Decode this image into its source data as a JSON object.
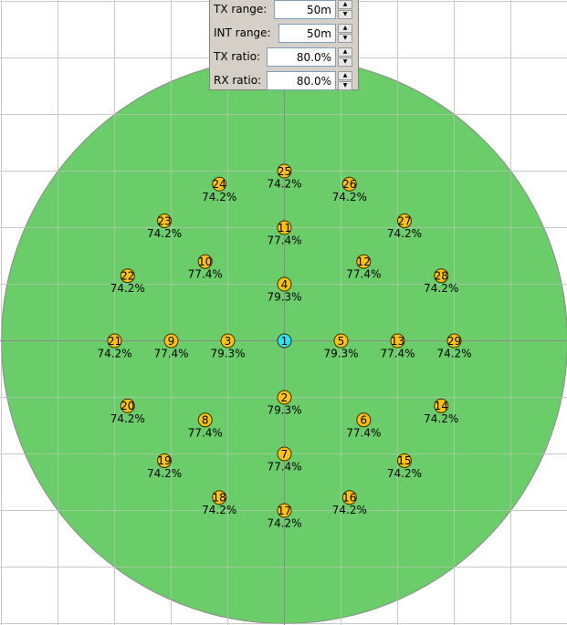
{
  "settings": [
    {
      "label": "TX range:",
      "value": "50m"
    },
    {
      "label": "INT range:",
      "value": "50m"
    },
    {
      "label": "TX ratio:",
      "value": "80.0%"
    },
    {
      "label": "RX ratio:",
      "value": "80.0%"
    }
  ],
  "colors": {
    "range_fill": "#6acd6a",
    "range_stroke": "#8a8a8a",
    "grid": "#c8c8c8",
    "axis": "#8a8a8a",
    "node_fill": "#ffc20e",
    "sink_fill": "#27e4f4",
    "node_stroke": "#3a2a00"
  },
  "nodes": [
    {
      "id": "1",
      "pct": "",
      "gx": 0,
      "gy": 0,
      "sink": true
    },
    {
      "id": "2",
      "pct": "79.3%",
      "gx": 0,
      "gy": 1
    },
    {
      "id": "3",
      "pct": "79.3%",
      "gx": -1,
      "gy": 0
    },
    {
      "id": "4",
      "pct": "79.3%",
      "gx": 0,
      "gy": -1
    },
    {
      "id": "5",
      "pct": "79.3%",
      "gx": 1,
      "gy": 0
    },
    {
      "id": "6",
      "pct": "77.4%",
      "gx": 1.4,
      "gy": 1.4
    },
    {
      "id": "7",
      "pct": "77.4%",
      "gx": 0,
      "gy": 2
    },
    {
      "id": "8",
      "pct": "77.4%",
      "gx": -1.4,
      "gy": 1.4
    },
    {
      "id": "9",
      "pct": "77.4%",
      "gx": -2,
      "gy": 0
    },
    {
      "id": "10",
      "pct": "77.4%",
      "gx": -1.4,
      "gy": -1.4
    },
    {
      "id": "11",
      "pct": "77.4%",
      "gx": 0,
      "gy": -2
    },
    {
      "id": "12",
      "pct": "77.4%",
      "gx": 1.4,
      "gy": -1.4
    },
    {
      "id": "13",
      "pct": "77.4%",
      "gx": 2,
      "gy": 0
    },
    {
      "id": "14",
      "pct": "74.2%",
      "gx": 2.77,
      "gy": 1.15
    },
    {
      "id": "15",
      "pct": "74.2%",
      "gx": 2.12,
      "gy": 2.12
    },
    {
      "id": "16",
      "pct": "74.2%",
      "gx": 1.15,
      "gy": 2.77
    },
    {
      "id": "17",
      "pct": "74.2%",
      "gx": 0,
      "gy": 3
    },
    {
      "id": "18",
      "pct": "74.2%",
      "gx": -1.15,
      "gy": 2.77
    },
    {
      "id": "19",
      "pct": "74.2%",
      "gx": -2.12,
      "gy": 2.12
    },
    {
      "id": "20",
      "pct": "74.2%",
      "gx": -2.77,
      "gy": 1.15
    },
    {
      "id": "21",
      "pct": "74.2%",
      "gx": -3,
      "gy": 0
    },
    {
      "id": "22",
      "pct": "74.2%",
      "gx": -2.77,
      "gy": -1.15
    },
    {
      "id": "23",
      "pct": "74.2%",
      "gx": -2.12,
      "gy": -2.12
    },
    {
      "id": "24",
      "pct": "74.2%",
      "gx": -1.15,
      "gy": -2.77
    },
    {
      "id": "25",
      "pct": "74.2%",
      "gx": 0,
      "gy": -3
    },
    {
      "id": "26",
      "pct": "74.2%",
      "gx": 1.15,
      "gy": -2.77
    },
    {
      "id": "27",
      "pct": "74.2%",
      "gx": 2.12,
      "gy": -2.12
    },
    {
      "id": "28",
      "pct": "74.2%",
      "gx": 2.77,
      "gy": -1.15
    },
    {
      "id": "29",
      "pct": "74.2%",
      "gx": 3,
      "gy": 0
    }
  ]
}
